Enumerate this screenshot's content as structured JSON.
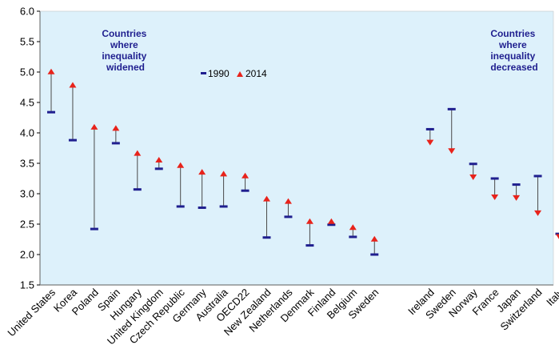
{
  "chart_data": {
    "type": "range-dot",
    "title": "",
    "xlabel": "",
    "ylabel": "",
    "ylim": [
      1.5,
      6.0
    ],
    "yticks": [
      "6.0",
      "5.5",
      "5.0",
      "4.5",
      "4.0",
      "3.5",
      "3.0",
      "2.5",
      "2.0",
      "1.5"
    ],
    "grid": false,
    "colors": {
      "background": "#ddf1fb",
      "range_line": "#4a4a4a",
      "marker_1990": "#1f1f8f",
      "marker_2014": "#e8231b",
      "annotation": "#1f1f8f"
    },
    "legend": {
      "position": "top-center",
      "entries": [
        {
          "symbol": "-",
          "label": "1990"
        },
        {
          "symbol": "▲",
          "label": "2014"
        }
      ]
    },
    "annotations": [
      {
        "group": "widened",
        "lines": [
          "Countries",
          "where",
          "inequality",
          "widened"
        ]
      },
      {
        "group": "decreased",
        "lines": [
          "Countries",
          "where",
          "inequality",
          "decreased"
        ]
      }
    ],
    "groups": [
      {
        "name": "widened",
        "categories": [
          "United States",
          "Korea",
          "Poland",
          "Spain",
          "Hungary",
          "United Kingdom",
          "Czech Republic",
          "Germany",
          "Australia",
          "OECD22",
          "New Zealand",
          "Netherlands",
          "Denmark",
          "Finland",
          "Belgium",
          "Sweden"
        ]
      },
      {
        "name": "decreased",
        "categories": [
          "Ireland",
          "Sweden",
          "Norway",
          "France",
          "Japan",
          "Switzerland",
          "Italy"
        ]
      }
    ],
    "series": [
      {
        "name": "1990",
        "values": [
          4.34,
          3.88,
          2.42,
          3.83,
          3.07,
          3.41,
          2.79,
          2.77,
          2.79,
          3.05,
          2.28,
          2.62,
          2.15,
          2.49,
          2.29,
          2.0,
          4.06,
          4.39,
          3.49,
          3.25,
          3.15,
          3.29,
          2.34
        ]
      },
      {
        "name": "2014",
        "values": [
          5.01,
          4.79,
          4.1,
          4.08,
          3.67,
          3.56,
          3.47,
          3.36,
          3.33,
          3.3,
          2.92,
          2.88,
          2.55,
          2.55,
          2.45,
          2.26,
          3.84,
          3.7,
          3.27,
          2.94,
          2.93,
          2.68,
          2.29
        ]
      }
    ]
  }
}
